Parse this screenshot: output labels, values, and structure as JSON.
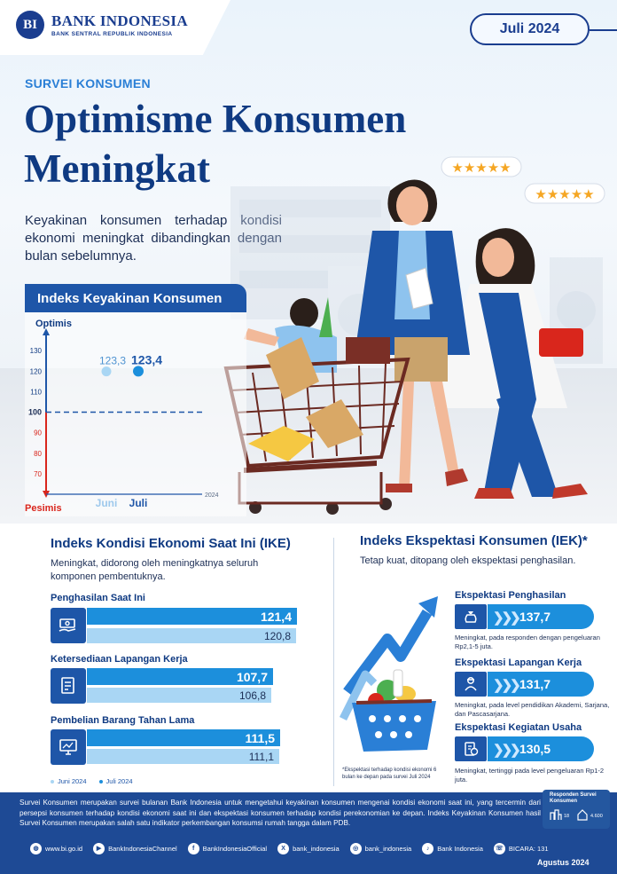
{
  "header": {
    "logo_initials": "BI",
    "logo_name": "BANK INDONESIA",
    "logo_subtitle": "BANK SENTRAL REPUBLIK INDONESIA",
    "period_badge": "Juli 2024"
  },
  "hero": {
    "kicker": "SURVEI KONSUMEN",
    "title": "Optimisme Konsumen Meningkat",
    "intro": "Keyakinan konsumen terhadap kondisi ekonomi meningkat dibandingkan dengan bulan sebelumnya."
  },
  "colors": {
    "navy": "#0f3a82",
    "blue": "#1e56a8",
    "bright_blue": "#1c8fdc",
    "light_blue": "#a9d6f4",
    "red": "#d9261c",
    "footer": "#1e4a95"
  },
  "chart_data": [
    {
      "type": "scatter",
      "title": "Indeks Keyakinan Konsumen",
      "top_label": "Optimis",
      "bottom_label": "Pesimis",
      "categories": [
        "Juni",
        "Juli"
      ],
      "year_label": "2024",
      "values": [
        123.3,
        123.4
      ],
      "value_labels": [
        "123,3",
        "123,4"
      ],
      "yticks": [
        70,
        80,
        90,
        100,
        110,
        120,
        130
      ],
      "threshold": 100,
      "ylim": [
        60,
        140
      ]
    },
    {
      "type": "bar",
      "title": "Indeks Kondisi Ekonomi Saat Ini (IKE)",
      "subtitle": "Meningkat, didorong oleh meningkatnya seluruh komponen pembentuknya.",
      "legend": [
        "Juni 2024",
        "Juli 2024"
      ],
      "categories": [
        "Penghasilan Saat Ini",
        "Ketersediaan Lapangan Kerja",
        "Pembelian Barang Tahan Lama"
      ],
      "series": [
        {
          "name": "Juli 2024",
          "values": [
            121.4,
            107.7,
            111.5
          ],
          "labels": [
            "121,4",
            "107,7",
            "111,5"
          ]
        },
        {
          "name": "Juni 2024",
          "values": [
            120.8,
            106.8,
            111.1
          ],
          "labels": [
            "120,8",
            "106,8",
            "111,1"
          ]
        }
      ],
      "icons": [
        "money-hand-icon",
        "job-document-icon",
        "monitor-icon"
      ]
    },
    {
      "type": "table",
      "title": "Indeks Ekspektasi Konsumen (IEK)*",
      "subtitle": "Tetap kuat, ditopang oleh ekspektasi penghasilan.",
      "items": [
        {
          "label": "Ekspektasi Penghasilan",
          "value": 137.7,
          "value_text": "137,7",
          "note": "Meningkat, pada responden dengan pengeluaran Rp2,1-5 juta.",
          "icon": "money-bag-icon"
        },
        {
          "label": "Ekspektasi Lapangan Kerja",
          "value": 131.7,
          "value_text": "131,7",
          "note": "Meningkat, pada level pendidikan Akademi, Sarjana, dan Pascasarjana.",
          "icon": "worker-icon"
        },
        {
          "label": "Ekspektasi Kegiatan Usaha",
          "value": 130.5,
          "value_text": "130,5",
          "note": "Meningkat, tertinggi pada level pengeluaran Rp1-2 juta.",
          "icon": "business-icon"
        }
      ],
      "footnote": "*Ekspektasi terhadap kondisi ekonomi 6 bulan ke depan pada survei Juli 2024"
    }
  ],
  "footer": {
    "description": "Survei Konsumen merupakan survei bulanan Bank Indonesia untuk mengetahui keyakinan konsumen mengenai kondisi ekonomi saat ini, yang tercermin dari persepsi konsumen terhadap kondisi ekonomi saat ini dan ekspektasi konsumen terhadap kondisi perekonomian ke depan. Indeks Keyakinan Konsumen hasil Survei Konsumen merupakan salah satu indikator perkembangan konsumsi rumah tangga dalam PDB.",
    "respondent_title": "Responden Survei Konsumen",
    "respondent_cities": "18",
    "respondent_households": "4.600",
    "socials": [
      {
        "icon": "globe-icon",
        "glyph": "◍",
        "label": "www.bi.go.id"
      },
      {
        "icon": "youtube-icon",
        "glyph": "▶",
        "label": "BankIndonesiaChannel"
      },
      {
        "icon": "facebook-icon",
        "glyph": "f",
        "label": "BankIndonesiaOfficial"
      },
      {
        "icon": "x-icon",
        "glyph": "X",
        "label": "bank_indonesia"
      },
      {
        "icon": "instagram-icon",
        "glyph": "◎",
        "label": "bank_indonesia"
      },
      {
        "icon": "tiktok-icon",
        "glyph": "♪",
        "label": "Bank Indonesia"
      },
      {
        "icon": "bicara-icon",
        "glyph": "☏",
        "label": "BICARA: 131"
      }
    ],
    "publish_date": "Agustus 2024"
  }
}
